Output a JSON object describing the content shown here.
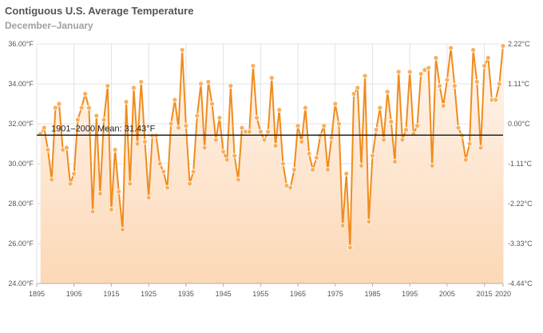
{
  "chart_data": {
    "type": "line",
    "title": "Contiguous U.S. Average Temperature",
    "subtitle": "December–January",
    "xlabel": "",
    "ylabel": "",
    "xlim": [
      1895,
      2020
    ],
    "ylim": [
      24,
      36
    ],
    "x_ticks": [
      "1895",
      "1905",
      "1915",
      "1925",
      "1935",
      "1945",
      "1955",
      "1965",
      "1975",
      "1985",
      "1995",
      "2005",
      "2015",
      "2020"
    ],
    "y_ticks_left": [
      "24.00°F",
      "26.00°F",
      "28.00°F",
      "30.00°F",
      "32.00°F",
      "34.00°F",
      "36.00°F"
    ],
    "y_ticks_right": [
      "-4.44°C",
      "-3.33°C",
      "-2.22°C",
      "-1.11°C",
      "0.00°C",
      "1.11°C",
      "2.22°C"
    ],
    "grid": true,
    "reference_line": {
      "label": "1901–2000 Mean: 31.43°F",
      "value": 31.43
    },
    "colors": {
      "line": "#f08c1e",
      "marker": "#f7b060",
      "area_top": "#fff6ee",
      "area_bottom": "#fcd8b6",
      "reference": "#222222"
    },
    "series": [
      {
        "x": [
          1896,
          1897,
          1898,
          1899,
          1900,
          1901,
          1902,
          1903,
          1904,
          1905,
          1906,
          1907,
          1908,
          1909,
          1910,
          1911,
          1912,
          1913,
          1914,
          1915,
          1916,
          1917,
          1918,
          1919,
          1920,
          1921,
          1922,
          1923,
          1924,
          1925,
          1926,
          1927,
          1928,
          1929,
          1930,
          1931,
          1932,
          1933,
          1934,
          1935,
          1936,
          1937,
          1938,
          1939,
          1940,
          1941,
          1942,
          1943,
          1944,
          1945,
          1946,
          1947,
          1948,
          1949,
          1950,
          1951,
          1952,
          1953,
          1954,
          1955,
          1956,
          1957,
          1958,
          1959,
          1960,
          1961,
          1962,
          1963,
          1964,
          1965,
          1966,
          1967,
          1968,
          1969,
          1970,
          1971,
          1972,
          1973,
          1974,
          1975,
          1976,
          1977,
          1978,
          1979,
          1980,
          1981,
          1982,
          1983,
          1984,
          1985,
          1986,
          1987,
          1988,
          1989,
          1990,
          1991,
          1992,
          1993,
          1994,
          1995,
          1996,
          1997,
          1998,
          1999,
          2000,
          2001,
          2002,
          2003,
          2004,
          2005,
          2006,
          2007,
          2008,
          2009,
          2010,
          2011,
          2012,
          2013,
          2014,
          2015,
          2016,
          2017,
          2018,
          2019,
          2020
        ],
        "values": [
          31.5,
          31.8,
          30.7,
          29.2,
          32.8,
          33.0,
          30.7,
          30.8,
          29.0,
          29.5,
          32.2,
          32.8,
          33.5,
          32.8,
          27.6,
          32.4,
          28.5,
          32.2,
          33.9,
          27.7,
          30.7,
          28.6,
          26.7,
          33.1,
          29.0,
          33.8,
          31.0,
          34.1,
          31.1,
          28.3,
          31.4,
          31.4,
          30.0,
          29.6,
          28.8,
          32.0,
          33.2,
          31.8,
          35.7,
          31.9,
          29.0,
          29.6,
          32.4,
          34.0,
          30.8,
          34.1,
          33.0,
          31.2,
          32.3,
          30.6,
          30.2,
          33.9,
          30.4,
          29.2,
          31.8,
          31.6,
          31.6,
          34.9,
          32.3,
          31.6,
          31.2,
          31.6,
          34.3,
          30.9,
          32.7,
          30.0,
          28.9,
          28.8,
          29.7,
          31.9,
          31.1,
          32.8,
          30.5,
          29.7,
          30.3,
          31.4,
          31.9,
          29.7,
          31.3,
          33.0,
          32.0,
          26.9,
          29.5,
          25.8,
          33.5,
          33.8,
          29.9,
          34.4,
          27.1,
          30.4,
          31.7,
          32.8,
          31.2,
          33.6,
          32.1,
          30.1,
          34.6,
          31.2,
          31.7,
          34.6,
          31.5,
          31.9,
          34.5,
          34.7,
          34.8,
          29.9,
          35.3,
          33.9,
          32.9,
          34.2,
          35.8,
          33.9,
          31.8,
          31.4,
          30.2,
          31.0,
          35.7,
          34.1,
          30.8,
          34.9,
          35.3,
          33.2,
          33.2,
          34.0,
          35.9
        ]
      }
    ]
  }
}
